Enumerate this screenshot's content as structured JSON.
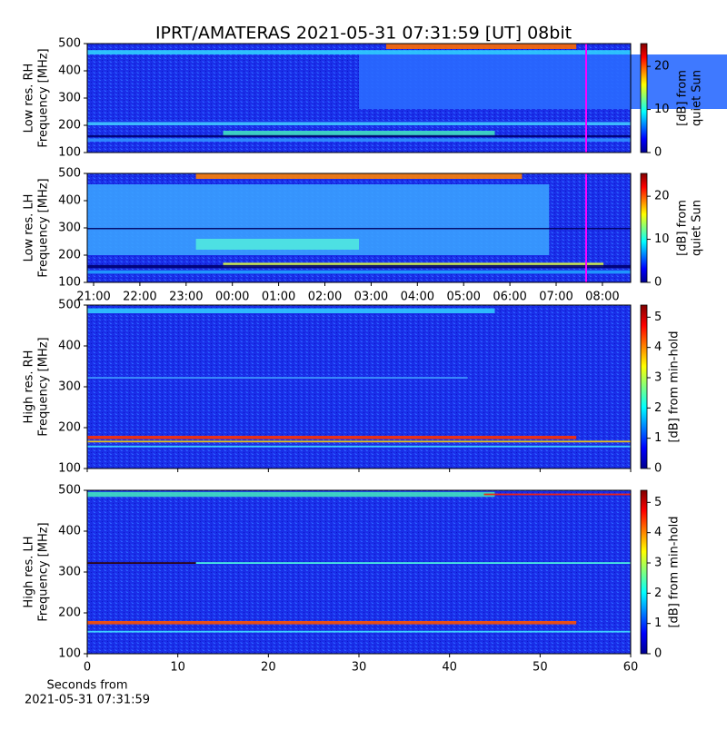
{
  "title": "IPRT/AMATERAS 2021-05-31 07:31:59 [UT]   08bit",
  "chart_data": [
    {
      "type": "heatmap",
      "ylabel": [
        "Low res. RH",
        "Frequency [MHz]"
      ],
      "ylim": [
        100,
        500
      ],
      "yticks": [
        100,
        200,
        300,
        400,
        500
      ],
      "colorbar": {
        "label": [
          "[dB] from",
          "quiet Sun"
        ],
        "lim": [
          0,
          25.3
        ],
        "ticks": [
          0,
          10,
          20
        ]
      }
    },
    {
      "type": "heatmap",
      "ylabel": [
        "Low res. LH",
        "Frequency [MHz]"
      ],
      "ylim": [
        100,
        500
      ],
      "yticks": [
        100,
        200,
        300,
        400,
        500
      ],
      "colorbar": {
        "label": [
          "[dB] from",
          "quiet Sun"
        ],
        "lim": [
          0,
          25.3
        ],
        "ticks": [
          0,
          10,
          20
        ]
      },
      "xticks": [
        "21:00",
        "22:00",
        "23:00",
        "00:00",
        "01:00",
        "02:00",
        "03:00",
        "04:00",
        "05:00",
        "06:00",
        "07:00",
        "08:00"
      ]
    },
    {
      "type": "heatmap",
      "ylabel": [
        "High res. RH",
        "Frequency [MHz]"
      ],
      "ylim": [
        100,
        500
      ],
      "yticks": [
        100,
        200,
        300,
        400,
        500
      ],
      "colorbar": {
        "label": [
          "[dB] from min-hold"
        ],
        "lim": [
          0,
          5.4
        ],
        "ticks": [
          0,
          1,
          2,
          3,
          4,
          5
        ]
      }
    },
    {
      "type": "heatmap",
      "ylabel": [
        "High res. LH",
        "Frequency [MHz]"
      ],
      "ylim": [
        100,
        500
      ],
      "yticks": [
        100,
        200,
        300,
        400,
        500
      ],
      "colorbar": {
        "label": [
          "[dB] from min-hold"
        ],
        "lim": [
          0,
          5.4
        ],
        "ticks": [
          0,
          1,
          2,
          3,
          4,
          5
        ]
      },
      "xlim": [
        0,
        60
      ],
      "xticks": [
        0,
        10,
        20,
        30,
        40,
        50,
        60
      ],
      "xlabel": [
        "Seconds from",
        "2021-05-31 07:31:59"
      ]
    }
  ]
}
